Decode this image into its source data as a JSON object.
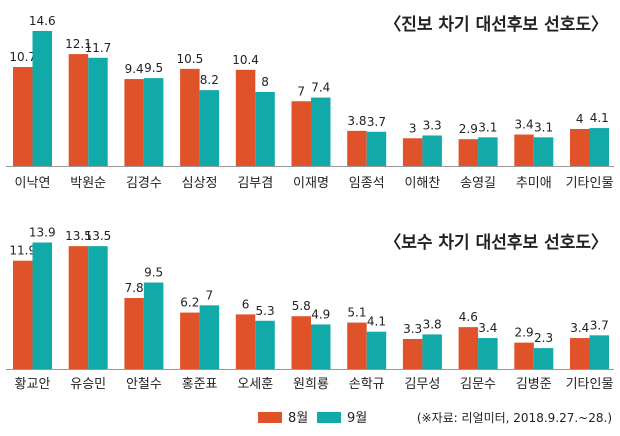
{
  "chart_data": [
    {
      "type": "bar",
      "title": "〈진보 차기 대선후보 선호도〉",
      "categories": [
        "이낙연",
        "박원순",
        "김경수",
        "심상정",
        "김부겸",
        "이재명",
        "임종석",
        "이해찬",
        "송영길",
        "추미애",
        "기타인물"
      ],
      "series": [
        {
          "name": "8월",
          "values": [
            10.7,
            12.1,
            9.4,
            10.5,
            10.4,
            7,
            3.8,
            3,
            2.9,
            3.4,
            4
          ]
        },
        {
          "name": "9월",
          "values": [
            14.6,
            11.7,
            9.5,
            8.2,
            8,
            7.4,
            3.7,
            3.3,
            3.1,
            3.1,
            4.1
          ]
        }
      ],
      "value_labels": [
        [
          "10.7",
          "12.1",
          "9.4",
          "10.5",
          "10.4",
          "7",
          "3.8",
          "3",
          "2.9",
          "3.4",
          "4"
        ],
        [
          "14.6",
          "11.7",
          "9.5",
          "8.2",
          "8",
          "7.4",
          "3.7",
          "3.3",
          "3.1",
          "3.1",
          "4.1"
        ]
      ],
      "ylim": [
        0,
        16
      ]
    },
    {
      "type": "bar",
      "title": "〈보수 차기 대선후보 선호도〉",
      "categories": [
        "황교안",
        "유승민",
        "안철수",
        "홍준표",
        "오세훈",
        "원희룡",
        "손학규",
        "김무성",
        "김문수",
        "김병준",
        "기타인물"
      ],
      "series": [
        {
          "name": "8월",
          "values": [
            11.9,
            13.5,
            7.8,
            6.2,
            6,
            5.8,
            5.1,
            3.3,
            4.6,
            2.9,
            3.4
          ]
        },
        {
          "name": "9월",
          "values": [
            13.9,
            13.5,
            9.5,
            7,
            5.3,
            4.9,
            4.1,
            3.8,
            3.4,
            2.3,
            3.7
          ]
        }
      ],
      "value_labels": [
        [
          "11.9",
          "13.5",
          "7.8",
          "6.2",
          "6",
          "5.8",
          "5.1",
          "3.3",
          "4.6",
          "2.9",
          "3.4"
        ],
        [
          "13.9",
          "13.5",
          "9.5",
          "7",
          "5.3",
          "4.9",
          "4.1",
          "3.8",
          "3.4",
          "2.3",
          "3.7"
        ]
      ],
      "ylim": [
        0,
        15
      ]
    }
  ],
  "legend": {
    "items": [
      {
        "label": "8월",
        "color": "#e0532a"
      },
      {
        "label": "9월",
        "color": "#12aaa8"
      }
    ]
  },
  "source": "(※자료: 리얼미터, 2018.9.27.~28.)",
  "colors": {
    "aug": "#e0532a",
    "sep": "#12aaa8",
    "axis": "#9a9a9a",
    "text": "#222222"
  }
}
